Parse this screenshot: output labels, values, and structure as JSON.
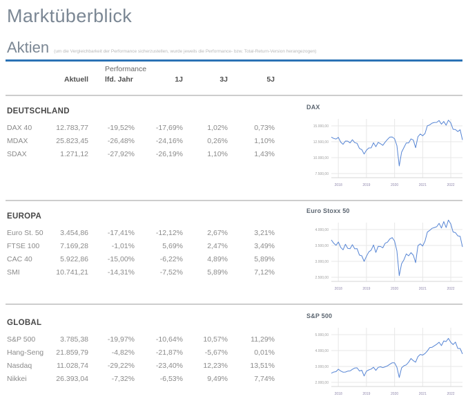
{
  "page": {
    "title": "Marktüberblick",
    "section_title": "Aktien",
    "section_note": "(um die Vergleichbarkeit der Performance sicherzustellen, wurde jeweils die Performance- bzw. Total-Return-Version herangezogen)"
  },
  "table": {
    "header_group": "Performance",
    "columns": [
      "Aktuell",
      "lfd. Jahr",
      "1J",
      "3J",
      "5J"
    ],
    "sections": [
      {
        "title": "DEUTSCHLAND",
        "rows": [
          {
            "name": "DAX 40",
            "values": [
              "12.783,77",
              "-19,52%",
              "-17,69%",
              "1,02%",
              "0,73%"
            ]
          },
          {
            "name": "MDAX",
            "values": [
              "25.823,45",
              "-26,48%",
              "-24,16%",
              "0,26%",
              "1,10%"
            ]
          },
          {
            "name": "SDAX",
            "values": [
              "1.271,12",
              "-27,92%",
              "-26,19%",
              "1,10%",
              "1,43%"
            ]
          }
        ]
      },
      {
        "title": "EUROPA",
        "rows": [
          {
            "name": "Euro St. 50",
            "values": [
              "3.454,86",
              "-17,41%",
              "-12,12%",
              "2,67%",
              "3,21%"
            ]
          },
          {
            "name": "FTSE 100",
            "values": [
              "7.169,28",
              "-1,01%",
              "5,69%",
              "2,47%",
              "3,49%"
            ]
          },
          {
            "name": "CAC 40",
            "values": [
              "5.922,86",
              "-15,00%",
              "-6,22%",
              "4,89%",
              "5,89%"
            ]
          },
          {
            "name": "SMI",
            "values": [
              "10.741,21",
              "-14,31%",
              "-7,52%",
              "5,89%",
              "7,12%"
            ]
          }
        ]
      },
      {
        "title": "GLOBAL",
        "rows": [
          {
            "name": "S&P 500",
            "values": [
              "3.785,38",
              "-19,97%",
              "-10,64%",
              "10,57%",
              "11,29%"
            ]
          },
          {
            "name": "Hang-Seng",
            "values": [
              "21.859,79",
              "-4,82%",
              "-21,87%",
              "-5,67%",
              "0,01%"
            ]
          },
          {
            "name": "Nasdaq",
            "values": [
              "11.028,74",
              "-29,22%",
              "-23,40%",
              "12,23%",
              "13,51%"
            ]
          },
          {
            "name": "Nikkei",
            "values": [
              "26.393,04",
              "-7,32%",
              "-6,53%",
              "9,49%",
              "7,74%"
            ]
          }
        ]
      }
    ]
  },
  "colors": {
    "accent_rule": "#2a72b5",
    "chart_line": "#5584d4",
    "grid_line": "#e7e7e7",
    "axis_line": "#d6d6d6",
    "y_label": "#9e9e9e",
    "x_label": "#9088ad",
    "divider": "#cdcdcd"
  },
  "chart_data": [
    {
      "type": "line",
      "title": "DAX",
      "x_tick_labels": [
        "2018",
        "2019",
        "2020",
        "2021",
        "2022"
      ],
      "x_tick_positions": [
        3,
        15,
        27,
        39,
        51
      ],
      "y_ticks": [
        {
          "value": 7500,
          "label": "7.500,00"
        },
        {
          "value": 10000,
          "label": "10.000,00"
        },
        {
          "value": 12500,
          "label": "12.500,00"
        },
        {
          "value": 15000,
          "label": "15.000,00"
        }
      ],
      "ylim": [
        7200,
        16400
      ],
      "values": [
        13230,
        13020,
        12920,
        13190,
        12440,
        12100,
        12610,
        12600,
        12310,
        12810,
        12360,
        12250,
        11450,
        11260,
        10560,
        11170,
        11520,
        11530,
        12340,
        11730,
        12400,
        12190,
        11940,
        12430,
        12870,
        13240,
        13250,
        12980,
        11890,
        8700,
        10860,
        11590,
        12310,
        12310,
        12950,
        12760,
        11560,
        13290,
        13720,
        13430,
        13790,
        15010,
        15140,
        15420,
        15530,
        15540,
        15840,
        15260,
        15690,
        15100,
        15890,
        15470,
        14460,
        14410,
        14100,
        14390,
        12780
      ]
    },
    {
      "type": "line",
      "title": "Euro Stoxx 50",
      "x_tick_labels": [
        "2018",
        "2019",
        "2020",
        "2021",
        "2022"
      ],
      "x_tick_positions": [
        3,
        15,
        27,
        39,
        51
      ],
      "y_ticks": [
        {
          "value": 2500,
          "label": "2.500,00"
        },
        {
          "value": 3000,
          "label": "3.000,00"
        },
        {
          "value": 3500,
          "label": "3.500,00"
        },
        {
          "value": 4000,
          "label": "4.000,00"
        }
      ],
      "ylim": [
        2400,
        4450
      ],
      "values": [
        3674,
        3570,
        3504,
        3609,
        3439,
        3362,
        3537,
        3407,
        3396,
        3525,
        3393,
        3399,
        3197,
        3173,
        3001,
        3159,
        3298,
        3352,
        3515,
        3280,
        3474,
        3467,
        3427,
        3569,
        3605,
        3704,
        3745,
        3640,
        3329,
        2550,
        2927,
        3050,
        3234,
        3174,
        3273,
        3193,
        2958,
        3493,
        3553,
        3481,
        3636,
        3919,
        3974,
        4039,
        4064,
        4089,
        4196,
        4048,
        4251,
        4063,
        4298,
        4175,
        3924,
        3903,
        3803,
        3789,
        3455
      ]
    },
    {
      "type": "line",
      "title": "S&P 500",
      "x_tick_labels": [
        "2018",
        "2019",
        "2020",
        "2021",
        "2022"
      ],
      "x_tick_positions": [
        3,
        15,
        27,
        39,
        51
      ],
      "y_ticks": [
        {
          "value": 2000,
          "label": "2.000,00"
        },
        {
          "value": 3000,
          "label": "3.000,00"
        },
        {
          "value": 4000,
          "label": "4.000,00"
        },
        {
          "value": 5000,
          "label": "5.000,00"
        }
      ],
      "ylim": [
        1950,
        5150
      ],
      "values": [
        2575,
        2648,
        2674,
        2824,
        2714,
        2641,
        2648,
        2705,
        2718,
        2816,
        2902,
        2914,
        2712,
        2760,
        2400,
        2704,
        2784,
        2834,
        2946,
        2752,
        2942,
        2980,
        2926,
        2977,
        3038,
        3141,
        3231,
        3226,
        2954,
        2305,
        2912,
        3044,
        3100,
        3271,
        3500,
        3363,
        3270,
        3622,
        3756,
        3714,
        3811,
        3973,
        4181,
        4204,
        4298,
        4395,
        4523,
        4308,
        4605,
        4567,
        4766,
        4516,
        4374,
        4530,
        4132,
        4132,
        3785
      ]
    }
  ]
}
